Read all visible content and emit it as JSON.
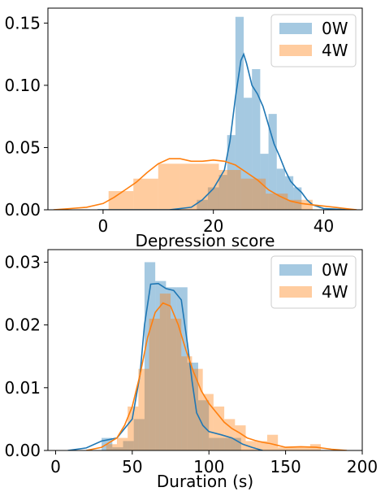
{
  "chart_data": [
    {
      "type": "histogram",
      "xlabel": "Depression score",
      "ylabel": "",
      "xlim": [
        -10,
        47
      ],
      "ylim": [
        0,
        0.162
      ],
      "xticks": [
        0,
        20,
        40
      ],
      "yticks": [
        0.0,
        0.05,
        0.1,
        0.15
      ],
      "ytick_decimals": 2,
      "legend": {
        "position": "top-right",
        "entries": [
          "0W",
          "4W"
        ]
      },
      "colors": {
        "0W": "#1f77b4",
        "4W": "#ff7f0e"
      },
      "series": [
        {
          "name": "0W",
          "bins": [
            {
              "x0": 17,
              "x1": 19,
              "value": 0.008
            },
            {
              "x0": 19,
              "x1": 21,
              "value": 0.018
            },
            {
              "x0": 21,
              "x1": 22.5,
              "value": 0.028
            },
            {
              "x0": 22.5,
              "x1": 24,
              "value": 0.06
            },
            {
              "x0": 24,
              "x1": 25.5,
              "value": 0.155
            },
            {
              "x0": 25.5,
              "x1": 27,
              "value": 0.09
            },
            {
              "x0": 27,
              "x1": 28.5,
              "value": 0.113
            },
            {
              "x0": 28.5,
              "x1": 30,
              "value": 0.045
            },
            {
              "x0": 30,
              "x1": 31.5,
              "value": 0.077
            },
            {
              "x0": 31.5,
              "x1": 33,
              "value": 0.033
            },
            {
              "x0": 33,
              "x1": 34.5,
              "value": 0.027
            },
            {
              "x0": 34.5,
              "x1": 36,
              "value": 0.018
            }
          ],
          "kde": [
            [
              -1,
              0
            ],
            [
              12,
              0
            ],
            [
              16,
              0.002
            ],
            [
              18,
              0.008
            ],
            [
              20,
              0.017
            ],
            [
              22,
              0.032
            ],
            [
              23,
              0.055
            ],
            [
              24,
              0.09
            ],
            [
              25,
              0.12
            ],
            [
              25.5,
              0.125
            ],
            [
              26,
              0.118
            ],
            [
              27,
              0.1
            ],
            [
              28,
              0.093
            ],
            [
              29,
              0.083
            ],
            [
              30,
              0.068
            ],
            [
              31,
              0.053
            ],
            [
              32,
              0.043
            ],
            [
              33,
              0.032
            ],
            [
              34,
              0.023
            ],
            [
              35,
              0.018
            ],
            [
              36,
              0.014
            ],
            [
              37,
              0.008
            ],
            [
              38,
              0.004
            ],
            [
              40,
              0.001
            ],
            [
              45,
              0
            ]
          ]
        },
        {
          "name": "4W",
          "bins": [
            {
              "x0": 1,
              "x1": 5.5,
              "value": 0.015
            },
            {
              "x0": 5.5,
              "x1": 10,
              "value": 0.025
            },
            {
              "x0": 10,
              "x1": 14,
              "value": 0.037
            },
            {
              "x0": 14,
              "x1": 21,
              "value": 0.037
            },
            {
              "x0": 21,
              "x1": 25,
              "value": 0.032
            },
            {
              "x0": 25,
              "x1": 29.5,
              "value": 0.025
            },
            {
              "x0": 29.5,
              "x1": 33.5,
              "value": 0.013
            },
            {
              "x0": 33.5,
              "x1": 38,
              "value": 0.008
            }
          ],
          "kde": [
            [
              -9,
              0
            ],
            [
              -6,
              0.001
            ],
            [
              -3,
              0.002
            ],
            [
              0,
              0.005
            ],
            [
              2,
              0.01
            ],
            [
              4,
              0.016
            ],
            [
              6,
              0.022
            ],
            [
              8,
              0.03
            ],
            [
              10,
              0.037
            ],
            [
              12,
              0.041
            ],
            [
              14,
              0.041
            ],
            [
              16,
              0.039
            ],
            [
              18,
              0.039
            ],
            [
              20,
              0.04
            ],
            [
              22,
              0.039
            ],
            [
              24,
              0.036
            ],
            [
              26,
              0.03
            ],
            [
              28,
              0.024
            ],
            [
              30,
              0.016
            ],
            [
              32,
              0.011
            ],
            [
              34,
              0.007
            ],
            [
              36,
              0.005
            ],
            [
              38,
              0.004
            ],
            [
              40,
              0.003
            ],
            [
              42,
              0.002
            ],
            [
              44,
              0.001
            ],
            [
              46,
              0
            ]
          ]
        }
      ]
    },
    {
      "type": "histogram",
      "xlabel": "Duration (s)",
      "ylabel": "",
      "xlim": [
        -5,
        200
      ],
      "ylim": [
        0,
        0.032
      ],
      "xticks": [
        0,
        50,
        100,
        150,
        200
      ],
      "yticks": [
        0.0,
        0.01,
        0.02,
        0.03
      ],
      "ytick_decimals": 2,
      "legend": {
        "position": "top-right",
        "entries": [
          "0W",
          "4W"
        ]
      },
      "colors": {
        "0W": "#1f77b4",
        "4W": "#ff7f0e"
      },
      "series": [
        {
          "name": "0W",
          "bins": [
            {
              "x0": 30,
              "x1": 37,
              "value": 0.002
            },
            {
              "x0": 37,
              "x1": 44,
              "value": 0.0005
            },
            {
              "x0": 44,
              "x1": 51,
              "value": 0.0015
            },
            {
              "x0": 51,
              "x1": 58,
              "value": 0.005
            },
            {
              "x0": 58,
              "x1": 65,
              "value": 0.03
            },
            {
              "x0": 65,
              "x1": 72,
              "value": 0.027
            },
            {
              "x0": 72,
              "x1": 79,
              "value": 0.026
            },
            {
              "x0": 79,
              "x1": 86,
              "value": 0.026
            },
            {
              "x0": 86,
              "x1": 93,
              "value": 0.014
            },
            {
              "x0": 93,
              "x1": 100,
              "value": 0.008
            },
            {
              "x0": 100,
              "x1": 107,
              "value": 0.002
            },
            {
              "x0": 107,
              "x1": 114,
              "value": 0.002
            },
            {
              "x0": 114,
              "x1": 121,
              "value": 0.002
            }
          ],
          "kde": [
            [
              8,
              0
            ],
            [
              20,
              0.0004
            ],
            [
              30,
              0.0015
            ],
            [
              40,
              0.002
            ],
            [
              50,
              0.005
            ],
            [
              55,
              0.012
            ],
            [
              58,
              0.02
            ],
            [
              62,
              0.0265
            ],
            [
              67,
              0.0266
            ],
            [
              72,
              0.0258
            ],
            [
              77,
              0.0255
            ],
            [
              82,
              0.024
            ],
            [
              86,
              0.017
            ],
            [
              89,
              0.011
            ],
            [
              92,
              0.006
            ],
            [
              96,
              0.004
            ],
            [
              100,
              0.003
            ],
            [
              108,
              0.0025
            ],
            [
              115,
              0.002
            ],
            [
              122,
              0.001
            ],
            [
              128,
              0.0005
            ],
            [
              135,
              0
            ]
          ]
        },
        {
          "name": "4W",
          "bins": [
            {
              "x0": 33,
              "x1": 40,
              "value": 0.001
            },
            {
              "x0": 40,
              "x1": 47,
              "value": 0.002
            },
            {
              "x0": 47,
              "x1": 54,
              "value": 0.007
            },
            {
              "x0": 54,
              "x1": 61,
              "value": 0.013
            },
            {
              "x0": 61,
              "x1": 68,
              "value": 0.021
            },
            {
              "x0": 68,
              "x1": 75,
              "value": 0.025
            },
            {
              "x0": 75,
              "x1": 82,
              "value": 0.021
            },
            {
              "x0": 82,
              "x1": 89,
              "value": 0.015
            },
            {
              "x0": 89,
              "x1": 96,
              "value": 0.013
            },
            {
              "x0": 96,
              "x1": 103,
              "value": 0.009
            },
            {
              "x0": 103,
              "x1": 110,
              "value": 0.007
            },
            {
              "x0": 110,
              "x1": 117,
              "value": 0.005
            },
            {
              "x0": 117,
              "x1": 124,
              "value": 0.004
            },
            {
              "x0": 124,
              "x1": 131,
              "value": 0.0015
            },
            {
              "x0": 131,
              "x1": 138,
              "value": 0.0015
            },
            {
              "x0": 138,
              "x1": 145,
              "value": 0.0025
            },
            {
              "x0": 145,
              "x1": 152,
              "value": 0.0005
            },
            {
              "x0": 152,
              "x1": 159,
              "value": 0.0005
            },
            {
              "x0": 159,
              "x1": 166,
              "value": 0.0005
            },
            {
              "x0": 166,
              "x1": 173,
              "value": 0.001
            }
          ],
          "kde": [
            [
              20,
              0
            ],
            [
              30,
              0.0005
            ],
            [
              40,
              0.002
            ],
            [
              45,
              0.004
            ],
            [
              50,
              0.007
            ],
            [
              55,
              0.012
            ],
            [
              60,
              0.018
            ],
            [
              65,
              0.022
            ],
            [
              70,
              0.0235
            ],
            [
              75,
              0.023
            ],
            [
              80,
              0.02
            ],
            [
              85,
              0.016
            ],
            [
              90,
              0.0125
            ],
            [
              95,
              0.0095
            ],
            [
              100,
              0.0075
            ],
            [
              105,
              0.006
            ],
            [
              110,
              0.0045
            ],
            [
              115,
              0.0035
            ],
            [
              120,
              0.0028
            ],
            [
              125,
              0.002
            ],
            [
              130,
              0.0016
            ],
            [
              135,
              0.0013
            ],
            [
              140,
              0.0011
            ],
            [
              145,
              0.0008
            ],
            [
              150,
              0.0005
            ],
            [
              160,
              0.0006
            ],
            [
              170,
              0.0005
            ],
            [
              180,
              0.0002
            ],
            [
              190,
              0
            ]
          ]
        }
      ]
    }
  ]
}
